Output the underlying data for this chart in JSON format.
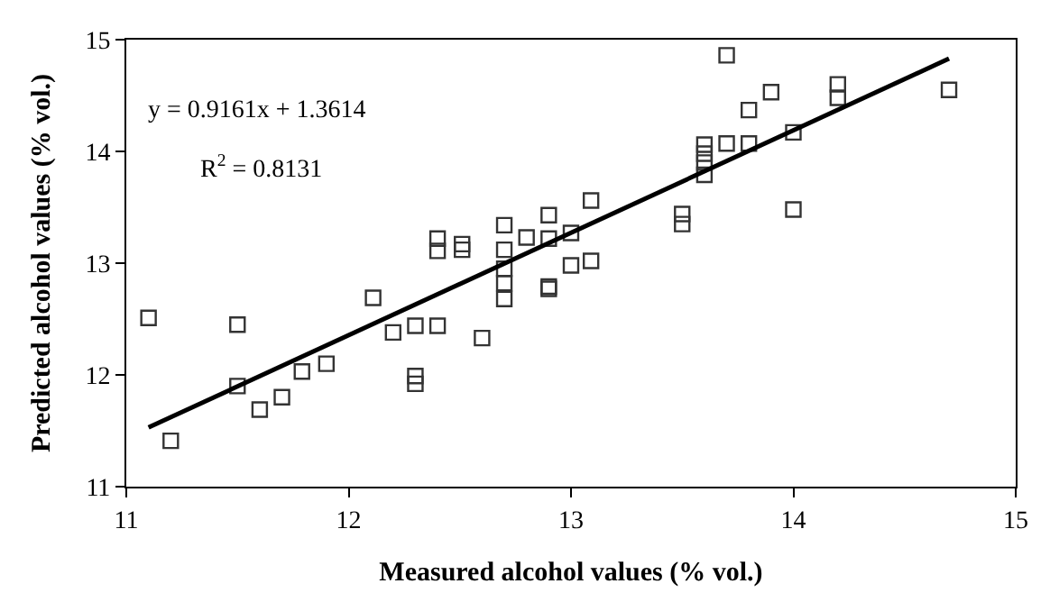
{
  "chart_data": {
    "type": "scatter",
    "xlabel": "Measured alcohol values (% vol.)",
    "ylabel": "Predicted alcohol values (% vol.)",
    "xlim": [
      11,
      15
    ],
    "xticks": [
      11,
      12,
      13,
      14,
      15
    ],
    "ylim": [
      11,
      15
    ],
    "yticks": [
      11,
      12,
      13,
      14,
      15
    ],
    "annotations": [
      "y = 0.9161x + 1.3614",
      "R$^{2}$ = 0.8131"
    ],
    "series": [
      {
        "marker": "square",
        "color": "#333333",
        "x": [
          11.1,
          11.2,
          11.5,
          11.5,
          11.6,
          11.7,
          11.79,
          11.9,
          12.11,
          12.2,
          12.3,
          12.3,
          12.3,
          12.4,
          12.4,
          12.4,
          12.51,
          12.51,
          12.6,
          12.7,
          12.7,
          12.7,
          12.7,
          12.7,
          12.8,
          12.9,
          12.9,
          12.9,
          12.9,
          13.0,
          13.0,
          13.09,
          13.09,
          13.5,
          13.5,
          13.6,
          13.6,
          13.6,
          13.6,
          13.7,
          13.7,
          13.8,
          13.8,
          13.9,
          14.0,
          14.0,
          14.2,
          14.2,
          14.7
        ],
        "values": [
          12.51,
          11.41,
          12.45,
          11.9,
          11.69,
          11.8,
          12.03,
          12.1,
          12.69,
          12.38,
          12.44,
          11.99,
          11.92,
          12.44,
          13.22,
          13.11,
          13.17,
          13.12,
          12.33,
          13.34,
          13.12,
          12.95,
          12.82,
          12.68,
          13.23,
          13.43,
          13.22,
          12.79,
          12.77,
          13.27,
          12.98,
          13.56,
          13.02,
          13.44,
          13.35,
          14.06,
          13.98,
          13.9,
          13.79,
          14.86,
          14.07,
          14.37,
          14.07,
          14.53,
          14.17,
          13.48,
          14.6,
          14.48,
          14.55
        ]
      },
      {
        "type": "line",
        "marker": "none",
        "color": "#000000",
        "line_style": "solid",
        "x": [
          11.1,
          14.7
        ],
        "values": [
          11.53,
          14.83
        ]
      }
    ]
  }
}
